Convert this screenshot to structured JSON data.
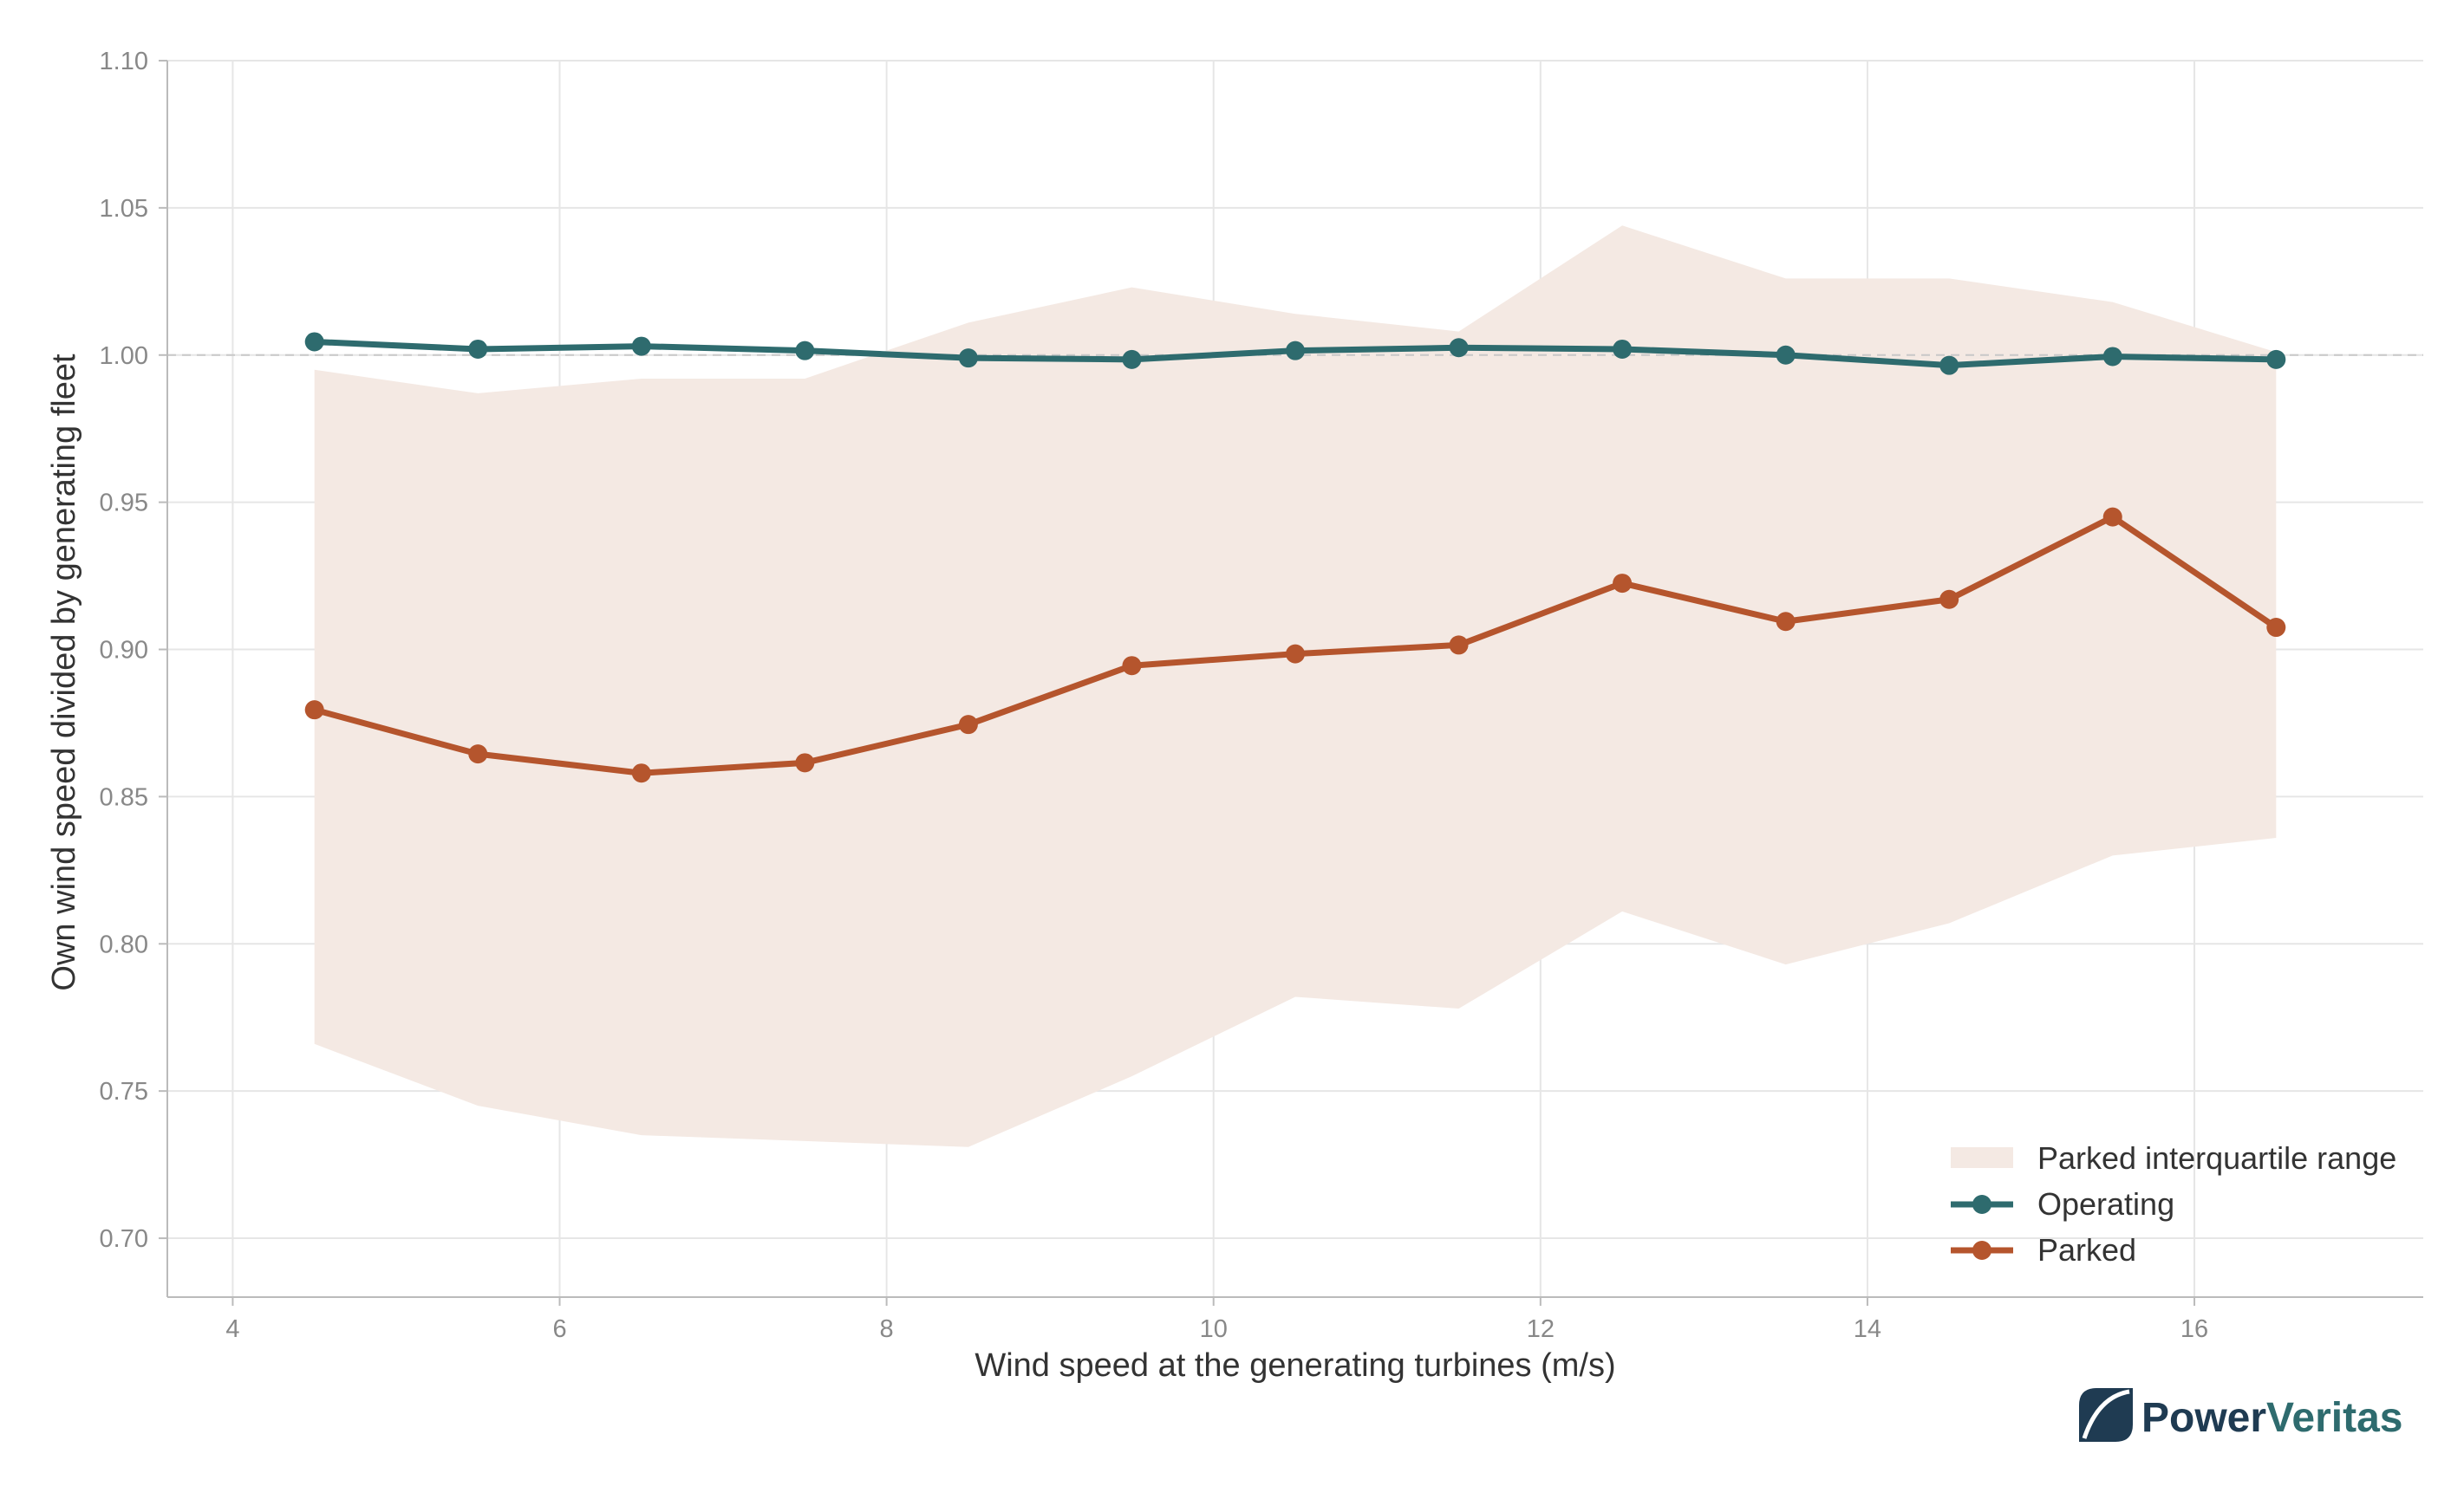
{
  "chart_data": {
    "type": "line",
    "title": "",
    "xlabel": "Wind speed at the generating turbines (m/s)",
    "ylabel": "Own wind speed divided by generating fleet",
    "xlim": [
      3.6,
      17.4
    ],
    "ylim": [
      0.68,
      1.1
    ],
    "x_ticks": [
      4,
      6,
      8,
      10,
      12,
      14,
      16
    ],
    "y_ticks": [
      0.7,
      0.75,
      0.8,
      0.85,
      0.9,
      0.95,
      1.0,
      1.05,
      1.1
    ],
    "x_tick_labels": [
      "4",
      "6",
      "8",
      "10",
      "12",
      "14",
      "16"
    ],
    "y_tick_labels": [
      "0.70",
      "0.75",
      "0.80",
      "0.85",
      "0.90",
      "0.95",
      "1.00",
      "1.05",
      "1.10"
    ],
    "reference_line": 1.0,
    "grid": true,
    "legend_position": "bottom-right",
    "x": [
      4.5,
      5.5,
      6.5,
      7.5,
      8.5,
      9.5,
      10.5,
      11.5,
      12.5,
      13.5,
      14.5,
      15.5,
      16.5
    ],
    "band": {
      "name": "Parked interquartile range",
      "color": "#f4e9e3",
      "lower": [
        0.766,
        0.745,
        0.735,
        0.733,
        0.731,
        0.755,
        0.782,
        0.778,
        0.811,
        0.793,
        0.807,
        0.83,
        0.836
      ],
      "upper": [
        0.995,
        0.987,
        0.992,
        0.992,
        1.011,
        1.023,
        1.014,
        1.008,
        1.044,
        1.026,
        1.026,
        1.018,
        1.001
      ]
    },
    "series": [
      {
        "name": "Operating",
        "color": "#2e6b6e",
        "values": [
          1.0045,
          1.002,
          1.003,
          1.0015,
          0.999,
          0.9985,
          1.0015,
          1.0025,
          1.002,
          1.0,
          0.9965,
          0.9995,
          0.9985
        ]
      },
      {
        "name": "Parked",
        "color": "#b5552d",
        "values": [
          0.8795,
          0.8645,
          0.858,
          0.8615,
          0.8745,
          0.8945,
          0.8985,
          0.9015,
          0.9225,
          0.9095,
          0.917,
          0.945,
          0.9075
        ]
      }
    ]
  },
  "logo": {
    "part1": "Power",
    "part2": "Veritas",
    "color_dark": "#1f3b52",
    "color_teal": "#2e6b6e"
  }
}
